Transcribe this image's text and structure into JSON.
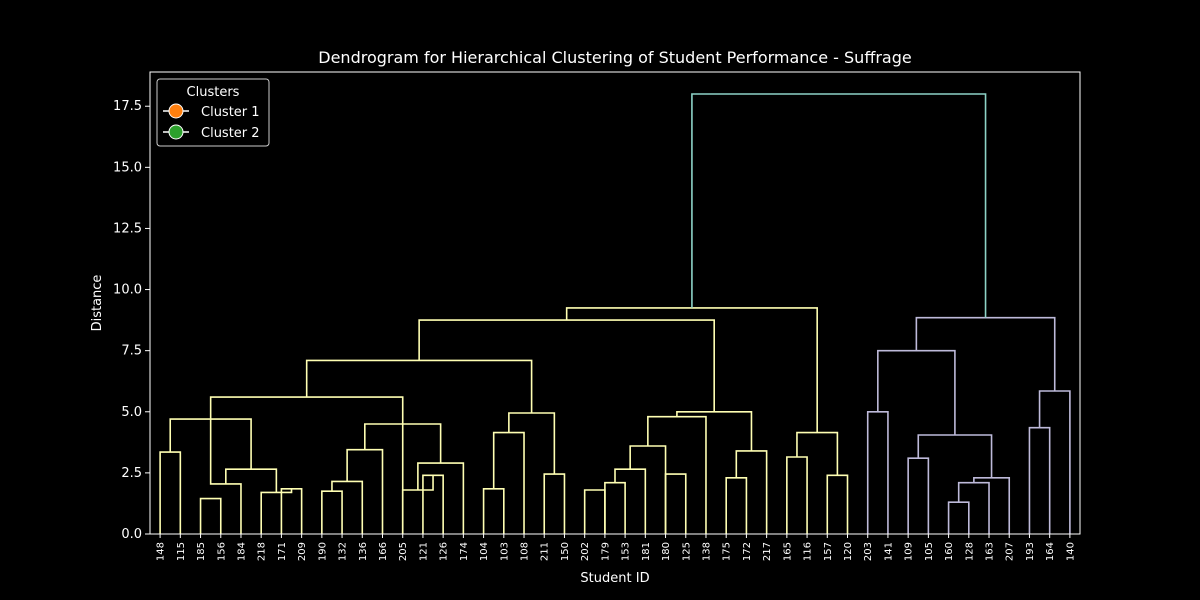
{
  "chart_data": {
    "type": "dendrogram",
    "title": "Dendrogram for Hierarchical Clustering of Student Performance - Suffrage",
    "xlabel": "Student ID",
    "ylabel": "Distance",
    "ylim": [
      0,
      18.9
    ],
    "yticks": [
      "0.0",
      "2.5",
      "5.0",
      "7.5",
      "10.0",
      "12.5",
      "15.0",
      "17.5"
    ],
    "grid": false,
    "legend": {
      "title": "Clusters",
      "placement": "top-left",
      "entries": [
        {
          "label": "Cluster 1",
          "color": "#ff7f0e"
        },
        {
          "label": "Cluster 2",
          "color": "#2ca02c"
        }
      ]
    },
    "colors": {
      "cluster_1_links": "#ffffb3",
      "cluster_2_links": "#bebada",
      "root_link": "#8dd3c7",
      "background": "#000000",
      "axes": "#ffffff"
    },
    "leaves": [
      "148",
      "115",
      "185",
      "156",
      "184",
      "218",
      "171",
      "209",
      "190",
      "132",
      "136",
      "166",
      "205",
      "121",
      "126",
      "174",
      "104",
      "103",
      "108",
      "211",
      "150",
      "202",
      "179",
      "153",
      "181",
      "180",
      "125",
      "138",
      "175",
      "172",
      "217",
      "165",
      "116",
      "157",
      "120",
      "203",
      "141",
      "109",
      "105",
      "160",
      "128",
      "163",
      "207",
      "193",
      "164",
      "140"
    ],
    "links": [
      {
        "left": [
          0
        ],
        "right": [
          1
        ],
        "height": 3.35,
        "group": "c1"
      },
      {
        "left": [
          2
        ],
        "right": [
          3
        ],
        "height": 1.45,
        "group": "c1"
      },
      {
        "left": [
          6
        ],
        "right": [
          7
        ],
        "height": 1.85,
        "group": "c1"
      },
      {
        "left": [
          5
        ],
        "right": [
          6.5
        ],
        "height": 1.7,
        "group": "c1"
      },
      {
        "left": [
          2.5
        ],
        "right": [
          4
        ],
        "height": 2.05,
        "group": "c1"
      },
      {
        "left": [
          3.25
        ],
        "right": [
          5.75
        ],
        "height": 2.65,
        "group": "c1"
      },
      {
        "left": [
          0.5
        ],
        "right": [
          4.5
        ],
        "height": 4.7,
        "group": "c1"
      },
      {
        "left": [
          8
        ],
        "right": [
          9
        ],
        "height": 1.75,
        "group": "c1"
      },
      {
        "left": [
          8.5
        ],
        "right": [
          10
        ],
        "height": 2.15,
        "group": "c1"
      },
      {
        "left": [
          9.25
        ],
        "right": [
          11
        ],
        "height": 3.45,
        "group": "c1"
      },
      {
        "left": [
          13
        ],
        "right": [
          14
        ],
        "height": 2.4,
        "group": "c1"
      },
      {
        "left": [
          12
        ],
        "right": [
          13.5
        ],
        "height": 1.8,
        "group": "c1"
      },
      {
        "left": [
          12.75
        ],
        "right": [
          15
        ],
        "height": 2.9,
        "group": "c1"
      },
      {
        "left": [
          10.125
        ],
        "right": [
          13.875
        ],
        "height": 4.5,
        "group": "c1"
      },
      {
        "left": [
          2.5
        ],
        "right": [
          12
        ],
        "height": 5.6,
        "group": "c1"
      },
      {
        "left": [
          16
        ],
        "right": [
          17
        ],
        "height": 1.85,
        "group": "c1"
      },
      {
        "left": [
          16.5
        ],
        "right": [
          18
        ],
        "height": 4.15,
        "group": "c1"
      },
      {
        "left": [
          19
        ],
        "right": [
          20
        ],
        "height": 2.45,
        "group": "c1"
      },
      {
        "left": [
          17.25
        ],
        "right": [
          19.5
        ],
        "height": 4.95,
        "group": "c1"
      },
      {
        "left": [
          7.25
        ],
        "right": [
          18.375
        ],
        "height": 7.1,
        "group": "c1"
      },
      {
        "left": [
          21
        ],
        "right": [
          22
        ],
        "height": 1.8,
        "group": "c1"
      },
      {
        "left": [
          22
        ],
        "right": [
          23
        ],
        "height": 2.1,
        "group": "c1"
      },
      {
        "left": [
          22.5
        ],
        "right": [
          24
        ],
        "height": 2.65,
        "group": "c1"
      },
      {
        "left": [
          23.25
        ],
        "right": [
          25
        ],
        "height": 3.6,
        "group": "c1"
      },
      {
        "left": [
          25
        ],
        "right": [
          26
        ],
        "height": 2.45,
        "group": "c1"
      },
      {
        "left": [
          24.125
        ],
        "right": [
          27
        ],
        "height": 4.8,
        "group": "c1"
      },
      {
        "left": [
          28
        ],
        "right": [
          29
        ],
        "height": 2.3,
        "group": "c1"
      },
      {
        "left": [
          28.5
        ],
        "right": [
          30
        ],
        "height": 3.4,
        "group": "c1"
      },
      {
        "left": [
          25.5625
        ],
        "right": [
          29.25
        ],
        "height": 5.0,
        "group": "c1"
      },
      {
        "left": [
          12.8125
        ],
        "right": [
          27.40625
        ],
        "height": 8.75,
        "group": "c1"
      },
      {
        "left": [
          31
        ],
        "right": [
          32
        ],
        "height": 3.15,
        "group": "c1"
      },
      {
        "left": [
          33
        ],
        "right": [
          34
        ],
        "height": 2.4,
        "group": "c1"
      },
      {
        "left": [
          31.5
        ],
        "right": [
          33.5
        ],
        "height": 4.15,
        "group": "c1"
      },
      {
        "left": [
          20.109375
        ],
        "right": [
          32.5
        ],
        "height": 9.25,
        "group": "c1"
      },
      {
        "left": [
          35
        ],
        "right": [
          36
        ],
        "height": 5.0,
        "group": "c2"
      },
      {
        "left": [
          37
        ],
        "right": [
          38
        ],
        "height": 3.1,
        "group": "c2"
      },
      {
        "left": [
          39
        ],
        "right": [
          40
        ],
        "height": 1.3,
        "group": "c2"
      },
      {
        "left": [
          39.5
        ],
        "right": [
          41
        ],
        "height": 2.1,
        "group": "c2"
      },
      {
        "left": [
          40.25
        ],
        "right": [
          42
        ],
        "height": 2.3,
        "group": "c2"
      },
      {
        "left": [
          37.5
        ],
        "right": [
          41.125
        ],
        "height": 4.05,
        "group": "c2"
      },
      {
        "left": [
          35.5
        ],
        "right": [
          39.3125
        ],
        "height": 7.5,
        "group": "c2"
      },
      {
        "left": [
          43
        ],
        "right": [
          44
        ],
        "height": 4.35,
        "group": "c2"
      },
      {
        "left": [
          43.5
        ],
        "right": [
          45
        ],
        "height": 5.85,
        "group": "c2"
      },
      {
        "left": [
          37.40625
        ],
        "right": [
          44.25
        ],
        "height": 8.85,
        "group": "c2"
      },
      {
        "left": [
          26.3046875
        ],
        "right": [
          40.828125
        ],
        "height": 18.0,
        "group": "root"
      }
    ]
  }
}
